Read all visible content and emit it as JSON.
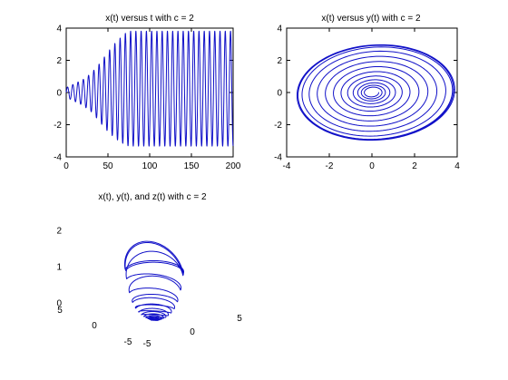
{
  "figure": {
    "background": "#ffffff",
    "line_color": "#1010c8"
  },
  "chart_data": [
    {
      "type": "line",
      "title": "x(t) versus t with c = 2",
      "xlabel": "",
      "ylabel": "",
      "xlim": [
        0,
        200
      ],
      "ylim": [
        -4,
        4
      ],
      "xticks": [
        0,
        50,
        100,
        150,
        200
      ],
      "yticks": [
        -4,
        -2,
        0,
        2,
        4
      ],
      "grid": false,
      "series": [
        {
          "description": "oscillation about 0 with period ~6.3, amplitude grows from about 0.3 at t=0 to about 3.7 near t=75, then stays at about 3.7 (positive peak ~3.8, negative peak ~-3.3) until t=200",
          "envelope_t": [
            0,
            10,
            20,
            30,
            40,
            50,
            60,
            70,
            75,
            100,
            150,
            200
          ],
          "envelope_amplitude": [
            0.3,
            0.55,
            0.8,
            1.2,
            1.8,
            2.5,
            3.1,
            3.55,
            3.7,
            3.7,
            3.7,
            3.7
          ],
          "period": 6.3
        }
      ]
    },
    {
      "type": "line",
      "title": "x(t) versus y(t) with c = 2",
      "xlabel": "",
      "ylabel": "",
      "xlim": [
        -4,
        4
      ],
      "ylim": [
        -4,
        4
      ],
      "xticks": [
        -4,
        -2,
        0,
        2,
        4
      ],
      "yticks": [
        -4,
        -2,
        0,
        2,
        4
      ],
      "grid": false,
      "series": [
        {
          "description": "spiral outward from origin to a limit cycle of radius about 3.7 in x and 3.0 in y",
          "loop_radii": [
            0.3,
            0.45,
            0.6,
            0.8,
            1.05,
            1.35,
            1.7,
            2.1,
            2.5,
            2.9,
            3.3,
            3.6,
            3.7
          ]
        }
      ]
    },
    {
      "type": "line",
      "title": "x(t), y(t), and z(t) with c = 2",
      "xlabel": "",
      "ylabel": "",
      "zlabel": "",
      "xlim": [
        -5,
        5
      ],
      "ylim": [
        -5,
        5
      ],
      "zlim": [
        0,
        2
      ],
      "xticks": [
        -5,
        0,
        5
      ],
      "yticks": [
        -5,
        0,
        5
      ],
      "zticks": [
        0,
        1,
        2
      ],
      "grid": false,
      "series": [
        {
          "description": "3-D spiral: radius grows from ~0.3 to ~3.7 while height z rises from ~0 to ~2, forming a cone-like cup",
          "loop_radii": [
            0.3,
            0.5,
            0.7,
            0.95,
            1.2,
            1.5,
            1.8,
            2.2,
            2.6,
            3.0,
            3.4,
            3.7
          ],
          "loop_heights": [
            0.05,
            0.07,
            0.1,
            0.13,
            0.17,
            0.22,
            0.3,
            0.42,
            0.6,
            0.9,
            1.4,
            2.0
          ]
        }
      ]
    }
  ]
}
